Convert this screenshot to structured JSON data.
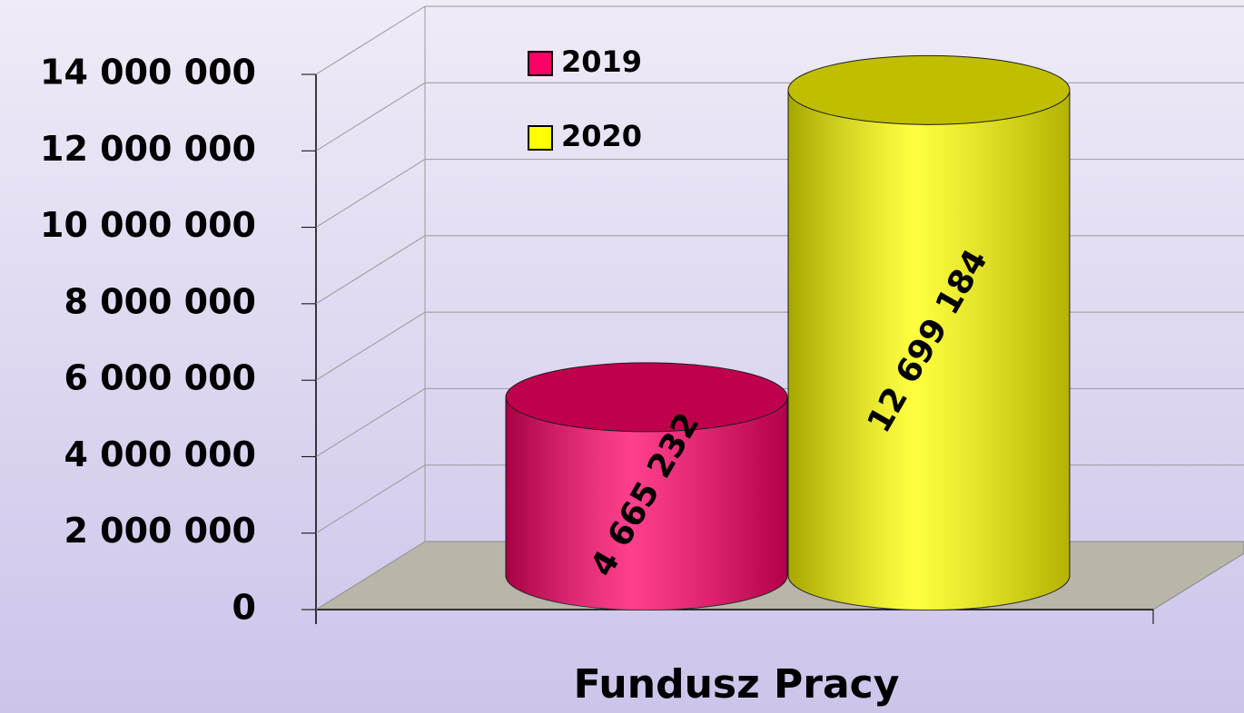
{
  "chart_data": {
    "type": "cylinder-bar",
    "categories": [
      "Fundusz Pracy"
    ],
    "series": [
      {
        "name": "2019",
        "color": "#ff0066",
        "values": [
          4665232
        ],
        "value_labels": [
          "4 665 232"
        ]
      },
      {
        "name": "2020",
        "color": "#ffff00",
        "values": [
          12699184
        ],
        "value_labels": [
          "12 699 184"
        ]
      }
    ],
    "ylim": [
      0,
      14000000
    ],
    "yticks": [
      0,
      {
        "value": 2000000,
        "label": "2 000 000"
      },
      {
        "value": 4000000,
        "label": "4 000 000"
      },
      {
        "value": 6000000,
        "label": "6 000 000"
      },
      {
        "value": 8000000,
        "label": "8 000 000"
      },
      {
        "value": 10000000,
        "label": "10 000 000"
      },
      {
        "value": 12000000,
        "label": "12 000 000"
      },
      {
        "value": 14000000,
        "label": "14 000 000"
      }
    ],
    "grid": true
  }
}
